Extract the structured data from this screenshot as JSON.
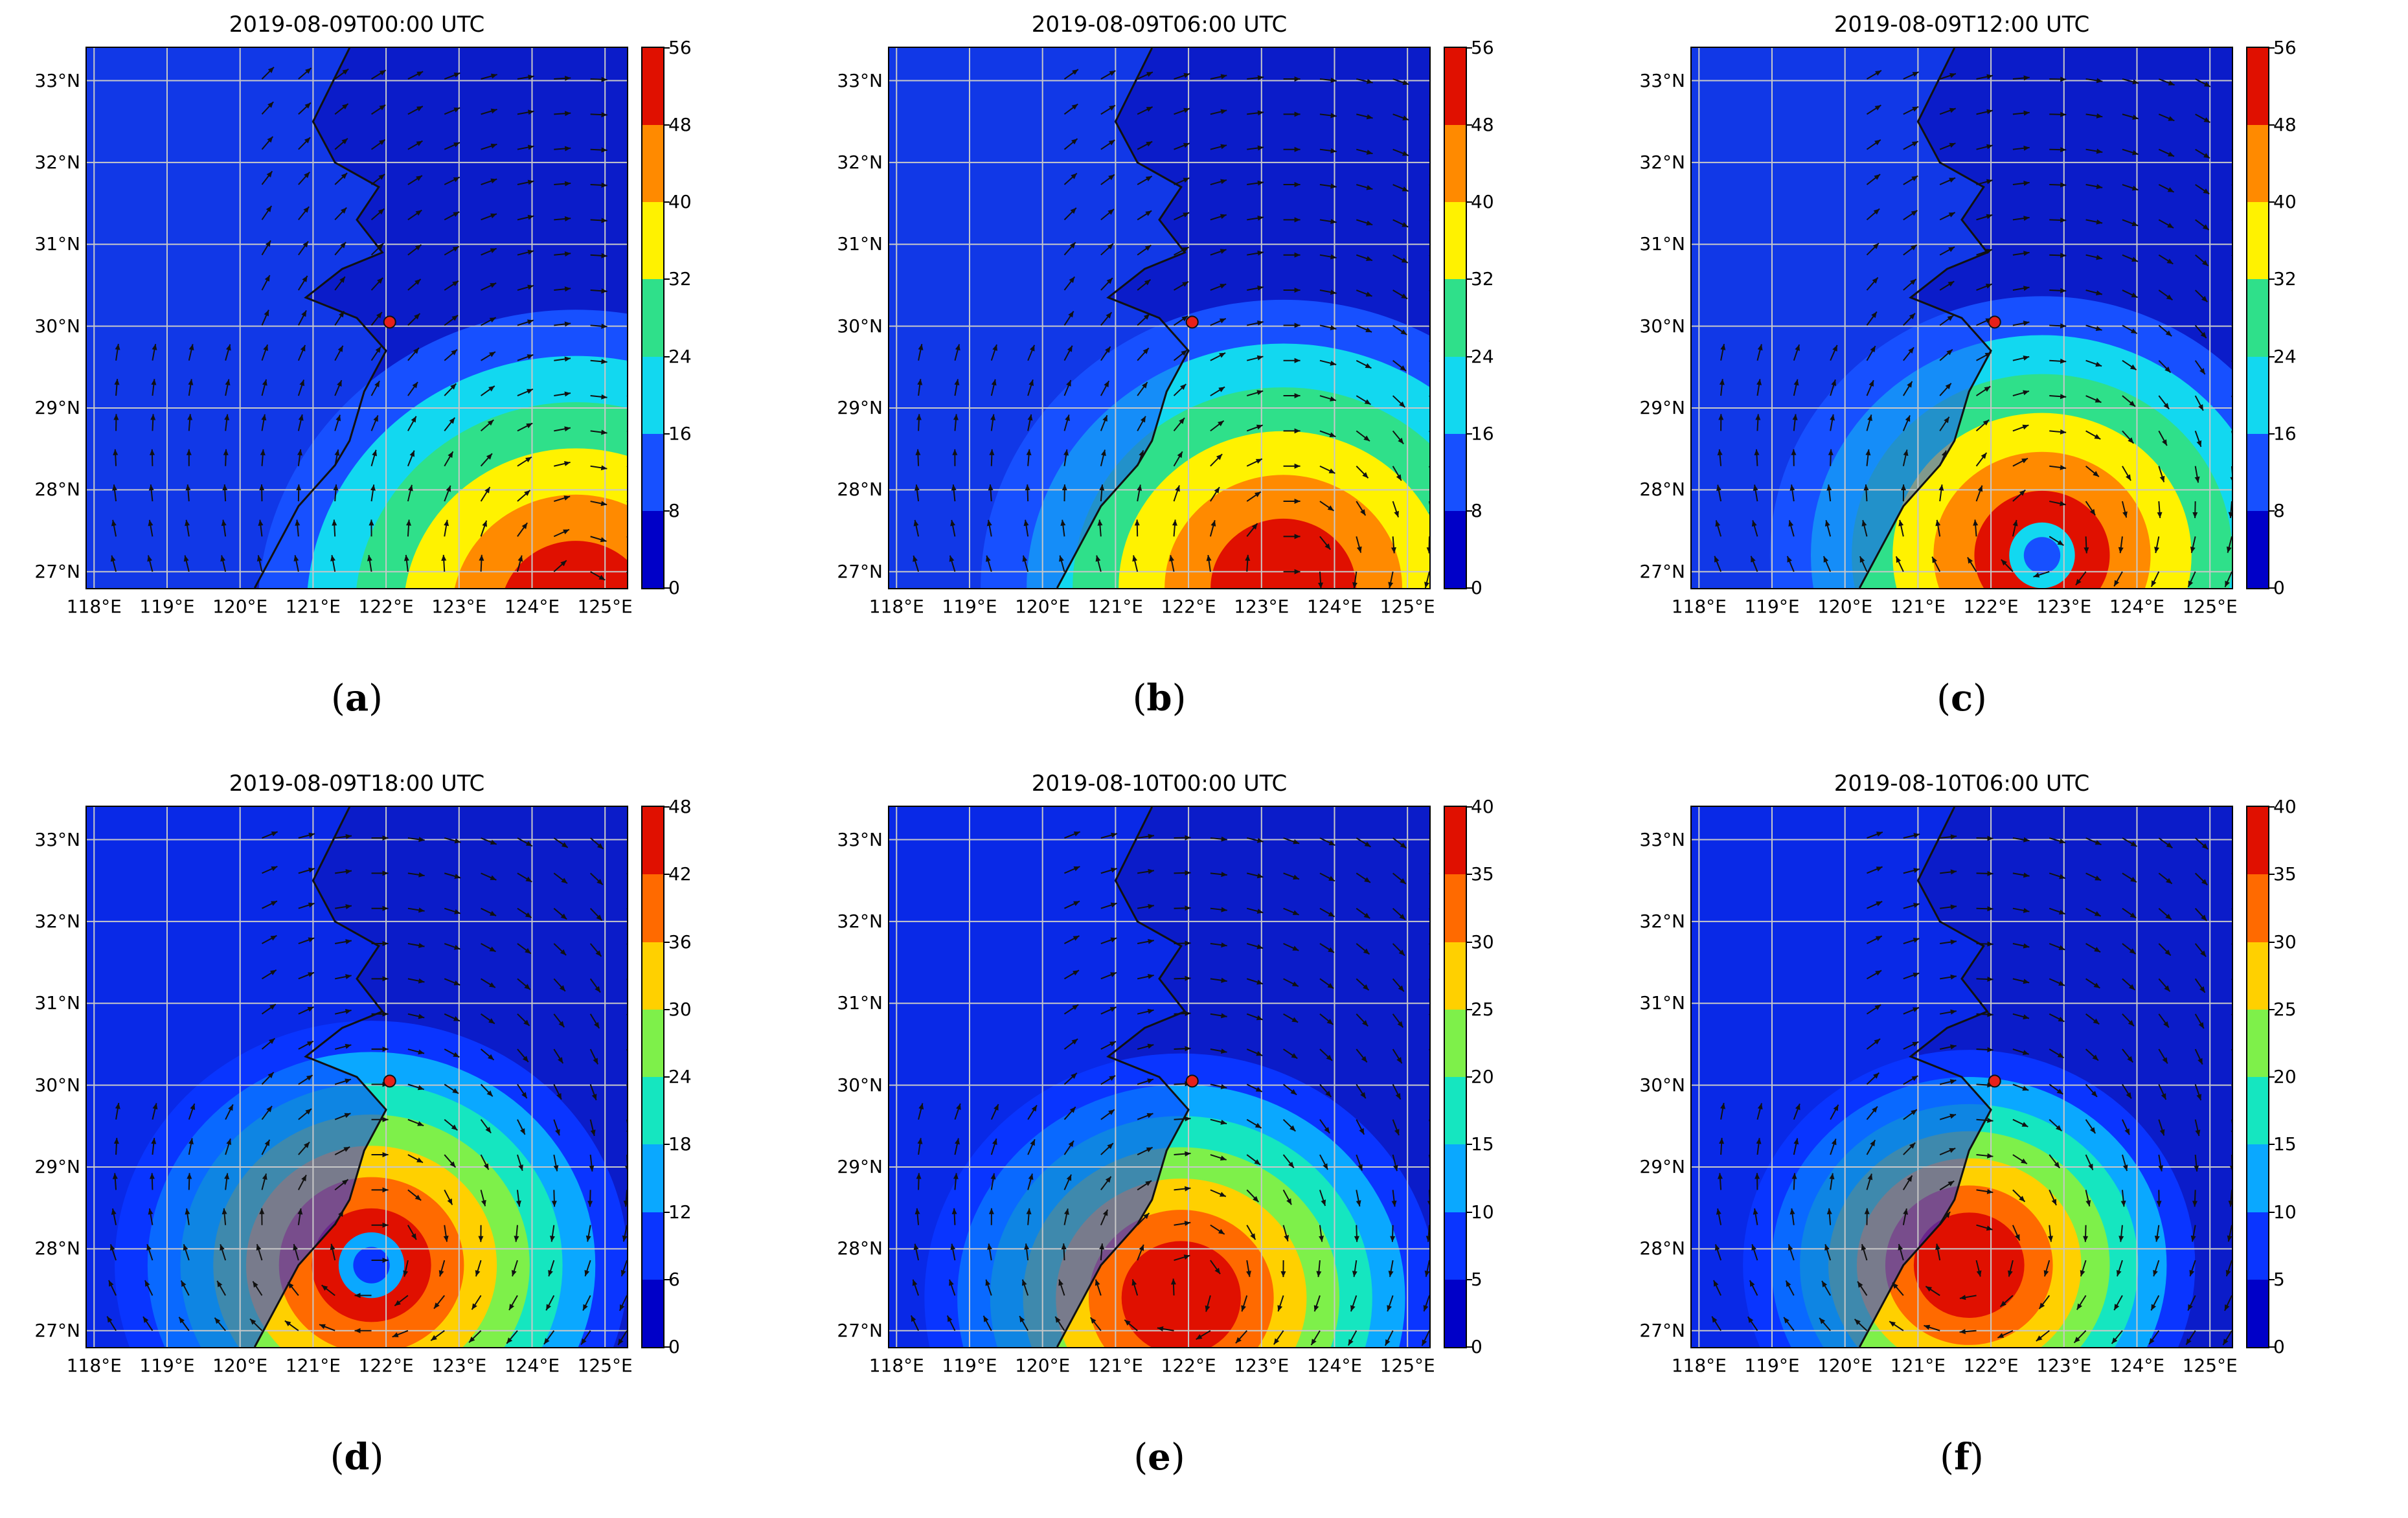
{
  "figure": {
    "lat_labels": [
      "33°N",
      "32°N",
      "31°N",
      "30°N",
      "29°N",
      "28°N",
      "27°N"
    ],
    "lon_labels": [
      "118°E",
      "119°E",
      "120°E",
      "121°E",
      "122°E",
      "123°E",
      "124°E",
      "125°E"
    ],
    "lat_range": [
      26.8,
      33.4
    ],
    "lon_range": [
      117.9,
      125.3
    ],
    "station_marker": {
      "lon": 122.05,
      "lat": 30.05,
      "color": "#e8201a"
    },
    "cbar_colors": [
      "#0000c8",
      "#0a35ff",
      "#0aa8ff",
      "#15e6c0",
      "#2ed16a",
      "#ffee00",
      "#ff9000",
      "#ff3a00",
      "#d00000"
    ]
  },
  "panels": [
    {
      "title": "2019-08-09T00:00 UTC",
      "label": "a",
      "cbar_ticks": [
        "0",
        "8",
        "16",
        "24",
        "32",
        "40",
        "48",
        "56"
      ],
      "cbar_colors": [
        "#0000c8",
        "#1750ff",
        "#12d8f0",
        "#2fe08a",
        "#fff200",
        "#ff8a00",
        "#e01000"
      ]
    },
    {
      "title": "2019-08-09T06:00 UTC",
      "label": "b",
      "cbar_ticks": [
        "0",
        "8",
        "16",
        "24",
        "32",
        "40",
        "48",
        "56"
      ],
      "cbar_colors": [
        "#0000c8",
        "#1750ff",
        "#12d8f0",
        "#2fe08a",
        "#fff200",
        "#ff8a00",
        "#e01000"
      ]
    },
    {
      "title": "2019-08-09T12:00 UTC",
      "label": "c",
      "cbar_ticks": [
        "0",
        "8",
        "16",
        "24",
        "32",
        "40",
        "48",
        "56"
      ],
      "cbar_colors": [
        "#0000c8",
        "#1750ff",
        "#12d8f0",
        "#2fe08a",
        "#fff200",
        "#ff8a00",
        "#e01000"
      ]
    },
    {
      "title": "2019-08-09T18:00 UTC",
      "label": "d",
      "cbar_ticks": [
        "0",
        "6",
        "12",
        "18",
        "24",
        "30",
        "36",
        "42",
        "48"
      ],
      "cbar_colors": [
        "#0000c8",
        "#0a35ff",
        "#0aa8ff",
        "#15e6c0",
        "#7ef04a",
        "#ffd000",
        "#ff6a00",
        "#e01000"
      ]
    },
    {
      "title": "2019-08-10T00:00 UTC",
      "label": "e",
      "cbar_ticks": [
        "0",
        "5",
        "10",
        "15",
        "20",
        "25",
        "30",
        "35",
        "40"
      ],
      "cbar_colors": [
        "#0000c8",
        "#0a35ff",
        "#0aa8ff",
        "#15e6c0",
        "#7ef04a",
        "#ffd000",
        "#ff6a00",
        "#e01000"
      ]
    },
    {
      "title": "2019-08-10T06:00 UTC",
      "label": "f",
      "cbar_ticks": [
        "0",
        "5",
        "10",
        "15",
        "20",
        "25",
        "30",
        "35",
        "40"
      ],
      "cbar_colors": [
        "#0000c8",
        "#0a35ff",
        "#0aa8ff",
        "#15e6c0",
        "#7ef04a",
        "#ffd000",
        "#ff6a00",
        "#e01000"
      ]
    }
  ]
}
